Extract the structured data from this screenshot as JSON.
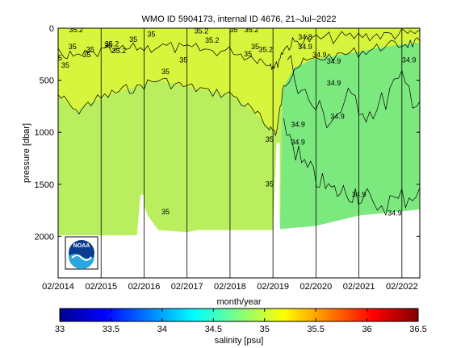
{
  "chart_data": [
    {
      "type": "heatmap",
      "title": "WMO ID 5904173, internal ID 4676, 21–Jul–2022",
      "xlabel": "month/year",
      "ylabel": "pressure [dbar]",
      "x_start": "2014-02",
      "x_end": "2022-07",
      "xticks": [
        "02/2014",
        "02/2015",
        "02/2016",
        "02/2017",
        "02/2018",
        "02/2019",
        "02/2020",
        "02/2021",
        "02/2022"
      ],
      "y_axis_reversed": true,
      "ylim": [
        0,
        2400
      ],
      "yticks": [
        0,
        500,
        1000,
        1500,
        2000
      ],
      "colors": {
        "upper_fill": "#d7f53c",
        "lower_fill_early": "#b9ee5e",
        "lower_fill_late": "#7ce97f",
        "contour_line": "#000000",
        "no_data": "#ffffff"
      },
      "profile_depth_dbar": [
        {
          "date": "2014-02",
          "pressure": 1990
        },
        {
          "date": "2015-01",
          "pressure": 1990
        },
        {
          "date": "2015-12",
          "pressure": 1990
        },
        {
          "date": "2016-01",
          "pressure": 1600
        },
        {
          "date": "2016-03",
          "pressure": 1800
        },
        {
          "date": "2016-06",
          "pressure": 1940
        },
        {
          "date": "2017-02",
          "pressure": 1960
        },
        {
          "date": "2017-05",
          "pressure": 1940
        },
        {
          "date": "2019-02",
          "pressure": 1940
        },
        {
          "date": "2019-03",
          "pressure": 1100
        },
        {
          "date": "2019-04",
          "pressure": 1930
        },
        {
          "date": "2020-02",
          "pressure": 1900
        },
        {
          "date": "2021-02",
          "pressure": 1800
        },
        {
          "date": "2022-02",
          "pressure": 1760
        },
        {
          "date": "2022-07",
          "pressure": 1740
        }
      ],
      "contour_labels": [
        {
          "text": "35.2",
          "date": "2014-07",
          "pressure": 40
        },
        {
          "text": "35",
          "date": "2014-06",
          "pressure": 200
        },
        {
          "text": "35",
          "date": "2014-11",
          "pressure": 230
        },
        {
          "text": "35",
          "date": "2014-10",
          "pressure": 280
        },
        {
          "text": "35",
          "date": "2014-02",
          "pressure": 310
        },
        {
          "text": "35",
          "date": "2014-04",
          "pressure": 380
        },
        {
          "text": "35.2",
          "date": "2015-05",
          "pressure": 175
        },
        {
          "text": "35",
          "date": "2015-04",
          "pressure": 190
        },
        {
          "text": "35.2",
          "date": "2015-07",
          "pressure": 240
        },
        {
          "text": "35",
          "date": "2015-11",
          "pressure": 130
        },
        {
          "text": "35",
          "date": "2016-04",
          "pressure": 80
        },
        {
          "text": "35.2",
          "date": "2017-06",
          "pressure": 50
        },
        {
          "text": "35",
          "date": "2017-01",
          "pressure": 330
        },
        {
          "text": "35",
          "date": "2016-08",
          "pressure": 440
        },
        {
          "text": "35.2",
          "date": "2017-09",
          "pressure": 140
        },
        {
          "text": "35",
          "date": "2018-03",
          "pressure": 40
        },
        {
          "text": "35.2",
          "date": "2018-08",
          "pressure": 40
        },
        {
          "text": "35",
          "date": "2018-07",
          "pressure": 270
        },
        {
          "text": "35",
          "date": "2018-09",
          "pressure": 200
        },
        {
          "text": "35.2",
          "date": "2018-12",
          "pressure": 230
        },
        {
          "text": "34.8",
          "date": "2019-11",
          "pressure": 110
        },
        {
          "text": "34.9",
          "date": "2019-11",
          "pressure": 200
        },
        {
          "text": "34.9",
          "date": "2020-03",
          "pressure": 280
        },
        {
          "text": "34.9",
          "date": "2020-07",
          "pressure": 340
        },
        {
          "text": "34.9",
          "date": "2022-04",
          "pressure": 330
        },
        {
          "text": "34.9",
          "date": "2020-07",
          "pressure": 550
        },
        {
          "text": "34.9",
          "date": "2020-08",
          "pressure": 870
        },
        {
          "text": "34.9",
          "date": "2019-09",
          "pressure": 950
        },
        {
          "text": "34.9",
          "date": "2019-09",
          "pressure": 1120
        },
        {
          "text": "35",
          "date": "2019-01",
          "pressure": 1090
        },
        {
          "text": "35",
          "date": "2019-01",
          "pressure": 1520
        },
        {
          "text": "34.9",
          "date": "2021-02",
          "pressure": 1620
        },
        {
          "text": "34.9",
          "date": "2021-12",
          "pressure": 1800
        },
        {
          "text": "35",
          "date": "2016-08",
          "pressure": 1790
        }
      ]
    },
    {
      "type": "colorbar",
      "xlabel": "salinity [psu]",
      "range": [
        33,
        36.5
      ],
      "ticks": [
        "33",
        "33.5",
        "34",
        "34.5",
        "35",
        "35.5",
        "36",
        "36.5"
      ],
      "colormap": [
        "#00008f",
        "#0000ff",
        "#0080ff",
        "#00ffff",
        "#80ff80",
        "#ffff00",
        "#ff8000",
        "#ff0000",
        "#800000"
      ]
    }
  ],
  "logo": {
    "text": "NOAA",
    "icon": "noaa-logo-icon"
  }
}
